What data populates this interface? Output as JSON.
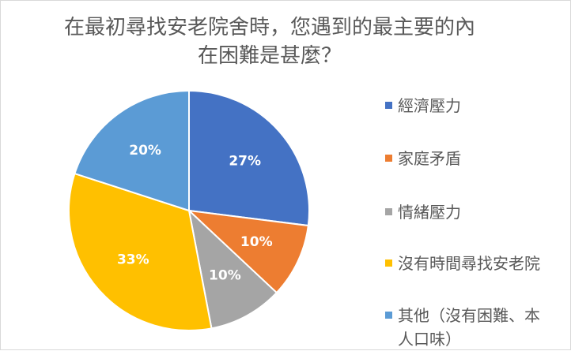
{
  "chart_data": {
    "type": "pie",
    "title": "在最初尋找安老院舍時，您遇到的最主要的內在困難是甚麼？",
    "title_lines": [
      "在最初尋找安老院舍時，您遇到的最主要的內",
      "在困難是甚麼？"
    ],
    "categories": [
      "經濟壓力",
      "家庭矛盾",
      "情緒壓力",
      "沒有時間尋找安老院",
      "其他（沒有困難、本人口味）"
    ],
    "legend_lines": [
      [
        "經濟壓力"
      ],
      [
        "家庭矛盾"
      ],
      [
        "情緒壓力"
      ],
      [
        "沒有時間尋找安老院"
      ],
      [
        "其他（沒有困難、本",
        "人口味）"
      ]
    ],
    "values": [
      27,
      10,
      10,
      33,
      20
    ],
    "data_labels": [
      "27%",
      "10%",
      "10%",
      "33%",
      "20%"
    ],
    "colors": [
      "#4472c4",
      "#ed7d31",
      "#a5a5a5",
      "#ffc000",
      "#5b9bd5"
    ],
    "legend": "right"
  }
}
